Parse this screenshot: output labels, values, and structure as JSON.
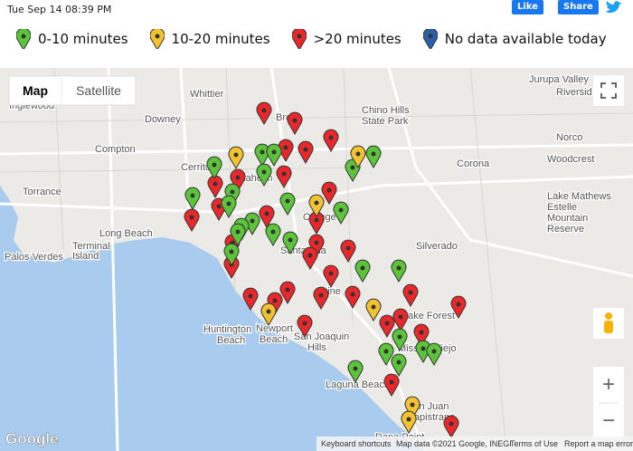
{
  "header": {
    "timestamp": "Tue Sep 14 08:39 PM",
    "like": "Like",
    "share": "Share"
  },
  "legend": [
    "0-10 minutes",
    "10-20 minutes",
    ">20 minutes",
    "No data available today"
  ],
  "map": {
    "controls": {
      "map": "Map",
      "satellite": "Satellite",
      "zoom_in": "+",
      "zoom_out": "−"
    },
    "places": [
      "Jurupa Valley",
      "Riversid",
      "Inglewood",
      "Whittier",
      "Downey",
      "Brea",
      "Chino Hills",
      "State Park",
      "Compton",
      "Norco",
      "Corona",
      "Woodcrest",
      "Torrance",
      "Cerritos",
      "Anaheim",
      "Lake Mathews",
      "Estelle",
      "Mountain",
      "Reserve",
      "Long Beach",
      "Orange",
      "Santa Ana",
      "Terminal",
      "Island",
      "Palos Verdes",
      "Silverado",
      "Huntington",
      "Beach",
      "Irvine",
      "Newport",
      "Beach",
      "San Joaquin",
      "Hills",
      "Lake Forest",
      "Mission Viejo",
      "Laguna Beach",
      "San Juan",
      "Capistrano",
      "Dana Point"
    ],
    "footer": {
      "logo": "Google",
      "shortcuts": "Keyboard shortcuts",
      "attribution": "Map data ©2021 Google, INEGI",
      "terms": "Terms of Use",
      "report": "Report a map error"
    }
  }
}
